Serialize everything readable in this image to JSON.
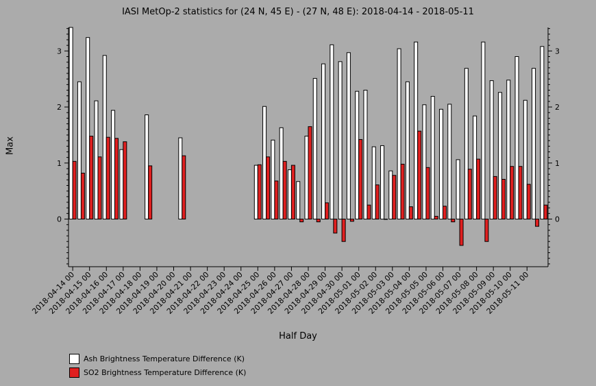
{
  "title": "IASI MetOp-2 statistics for (24 N, 45 E) - (27 N, 48 E): 2018-04-14 - 2018-05-11",
  "xlabel": "Half Day",
  "ylabel": "Max",
  "chart_data": {
    "type": "bar",
    "title": "IASI MetOp-2 statistics for (24 N, 45 E) - (27 N, 48 E): 2018-04-14 - 2018-05-11",
    "xlabel": "Half Day",
    "ylabel": "Max",
    "ylim": [
      -0.85,
      3.42
    ],
    "yticks": [
      0,
      1,
      2,
      3
    ],
    "grid": false,
    "legend_position": "bottom-left",
    "tick_labels": [
      "2018-04-14 00",
      "2018-04-15 00",
      "2018-04-16 00",
      "2018-04-17 00",
      "2018-04-18 00",
      "2018-04-19 00",
      "2018-04-20 00",
      "2018-04-21 00",
      "2018-04-22 00",
      "2018-04-23 00",
      "2018-04-24 00",
      "2018-04-25 00",
      "2018-04-26 00",
      "2018-04-27 00",
      "2018-04-28 00",
      "2018-04-29 00",
      "2018-04-30 00",
      "2018-05-01 00",
      "2018-05-02 00",
      "2018-05-03 00",
      "2018-05-04 00",
      "2018-05-05 00",
      "2018-05-06 00",
      "2018-05-07 00",
      "2018-05-08 00",
      "2018-05-09 00",
      "2018-05-10 00",
      "2018-05-11 00"
    ],
    "series": [
      {
        "name": "Ash Brightness Temperature Difference (K)",
        "color": "#ffffff",
        "values": [
          3.42,
          2.45,
          3.24,
          2.11,
          2.92,
          1.94,
          1.24,
          null,
          null,
          1.86,
          null,
          null,
          null,
          1.45,
          null,
          null,
          null,
          null,
          null,
          null,
          null,
          null,
          0.96,
          2.01,
          1.41,
          1.63,
          0.88,
          0.67,
          1.48,
          2.51,
          2.77,
          3.11,
          2.81,
          2.97,
          2.28,
          2.3,
          1.29,
          1.31,
          0.86,
          3.04,
          2.45,
          3.16,
          2.04,
          2.19,
          1.96,
          2.05,
          1.06,
          2.69,
          1.84,
          3.16,
          2.47,
          2.26,
          2.48,
          2.9,
          2.12,
          2.69,
          3.08
        ]
      },
      {
        "name": "SO2 Brightness Temperature Difference (K)",
        "color": "#e02020",
        "values": [
          1.03,
          0.82,
          1.48,
          1.11,
          1.46,
          1.44,
          1.38,
          null,
          null,
          0.95,
          null,
          null,
          null,
          1.13,
          null,
          null,
          null,
          null,
          null,
          null,
          null,
          null,
          0.97,
          1.11,
          0.68,
          1.03,
          0.96,
          -0.05,
          1.65,
          -0.05,
          0.29,
          -0.25,
          -0.4,
          -0.04,
          1.42,
          0.25,
          0.61,
          0.0,
          0.78,
          0.98,
          0.22,
          1.57,
          0.92,
          0.05,
          0.23,
          -0.05,
          -0.47,
          0.89,
          1.07,
          -0.4,
          0.76,
          0.71,
          0.94,
          0.94,
          0.62,
          -0.13,
          0.25
        ]
      }
    ]
  },
  "legend": [
    {
      "label": "Ash Brightness Temperature Difference (K)",
      "color": "#ffffff"
    },
    {
      "label": "SO2 Brightness Temperature Difference (K)",
      "color": "#e02020"
    }
  ]
}
